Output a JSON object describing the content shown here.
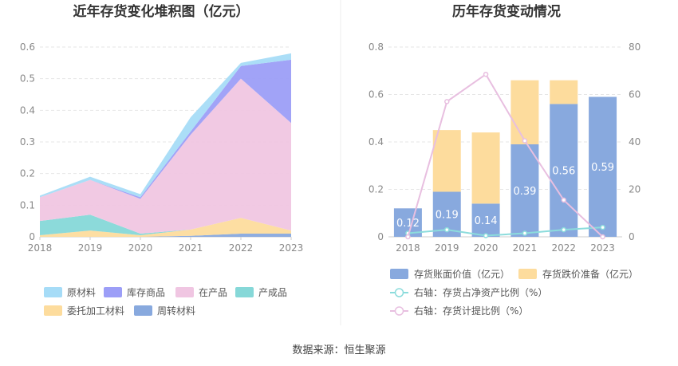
{
  "source": "数据来源：恒生聚源",
  "chart_data": [
    {
      "type": "area",
      "title": "近年存货变化堆积图（亿元）",
      "categories": [
        "2018",
        "2019",
        "2020",
        "2021",
        "2022",
        "2023"
      ],
      "ylim": [
        0,
        0.6
      ],
      "yticks": [
        "0",
        "0.1",
        "0.2",
        "0.3",
        "0.4",
        "0.5",
        "0.6"
      ],
      "grid": true,
      "legend_position": "bottom",
      "series": [
        {
          "name": "原材料",
          "color": "#a6dcf7",
          "values": [
            0.005,
            0.01,
            0.01,
            0.045,
            0.01,
            0.02
          ]
        },
        {
          "name": "库存商品",
          "color": "#9c9ef7",
          "values": [
            0.0,
            0.0,
            0.005,
            0.01,
            0.04,
            0.2
          ]
        },
        {
          "name": "在产品",
          "color": "#f0c6e2",
          "values": [
            0.075,
            0.11,
            0.11,
            0.3,
            0.44,
            0.34
          ]
        },
        {
          "name": "产成品",
          "color": "#86d8d8",
          "values": [
            0.045,
            0.05,
            0.005,
            0.0,
            0.0,
            0.0
          ]
        },
        {
          "name": "委托加工材料",
          "color": "#fddc9d",
          "values": [
            0.005,
            0.02,
            0.005,
            0.02,
            0.05,
            0.01
          ]
        },
        {
          "name": "周转材料",
          "color": "#88a9de",
          "values": [
            0.0,
            0.0,
            0.0,
            0.003,
            0.01,
            0.01
          ]
        }
      ]
    },
    {
      "type": "bar",
      "title": "历年存货变动情况",
      "categories": [
        "2018",
        "2019",
        "2020",
        "2021",
        "2022",
        "2023"
      ],
      "ylim": [
        0,
        0.8
      ],
      "yticks": [
        "0",
        "0.2",
        "0.4",
        "0.6",
        "0.8"
      ],
      "y2lim": [
        0,
        80
      ],
      "y2ticks": [
        "0",
        "20",
        "40",
        "60",
        "80"
      ],
      "grid": true,
      "legend_position": "bottom",
      "series": [
        {
          "name": "存货账面价值（亿元）",
          "kind": "bar",
          "color": "#88a9de",
          "values": [
            0.12,
            0.19,
            0.14,
            0.39,
            0.56,
            0.59
          ],
          "labels": [
            "0.12",
            "0.19",
            "0.14",
            "0.39",
            "0.56",
            "0.59"
          ]
        },
        {
          "name": "存货跌价准备（亿元）",
          "kind": "bar",
          "color": "#fddc9d",
          "values": [
            0.0,
            0.26,
            0.3,
            0.27,
            0.1,
            0.0
          ]
        },
        {
          "name": "右轴：存货占净资产比例（%）",
          "kind": "line",
          "axis": "right",
          "color": "#8cdcdc",
          "values": [
            1.5,
            3,
            0.5,
            1.5,
            3,
            4
          ]
        },
        {
          "name": "右轴：存货计提比例（%）",
          "kind": "line",
          "axis": "right",
          "color": "#e8bfe0",
          "values": [
            0,
            57,
            68.5,
            40.5,
            15.5,
            0
          ]
        }
      ]
    }
  ]
}
